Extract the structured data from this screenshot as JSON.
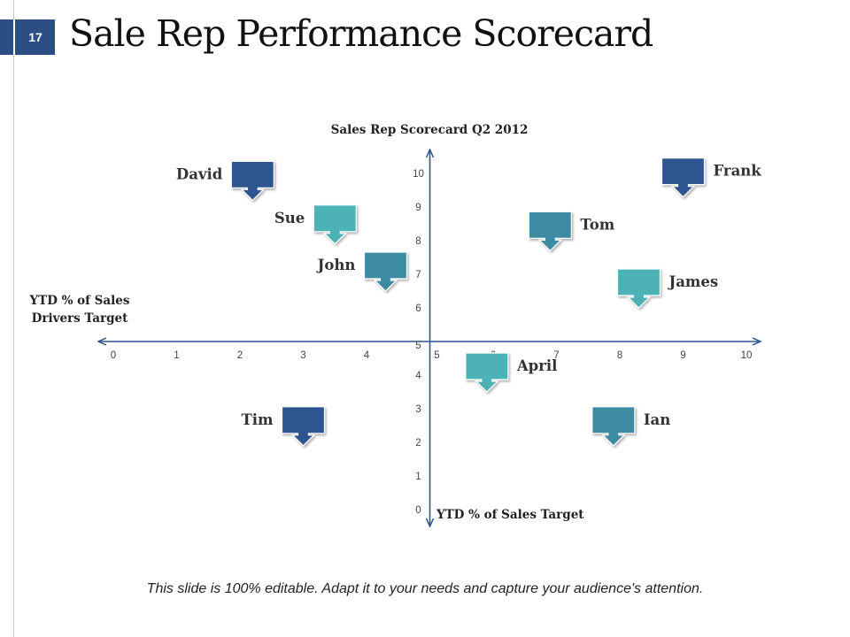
{
  "slide": {
    "number": "17",
    "title": "Sale Rep Performance Scorecard",
    "footer": "This slide is 100% editable. Adapt it to your needs and capture your audience's attention."
  },
  "chart_data": {
    "type": "scatter",
    "title": "Sales Rep Scorecard Q2 2012",
    "xlabel": "YTD % of Sales Drivers Target",
    "ylabel": "YTD % of Sales Target",
    "xlim": [
      0,
      10
    ],
    "ylim": [
      0,
      10
    ],
    "xticks": [
      0,
      1,
      2,
      3,
      4,
      5,
      6,
      7,
      8,
      9,
      10
    ],
    "yticks": [
      0,
      1,
      2,
      3,
      4,
      5,
      6,
      7,
      8,
      9,
      10
    ],
    "colors": {
      "dark": "#2f5590",
      "teal": "#4eb2b6",
      "mid": "#3e8aa3",
      "axis": "#2f5590"
    },
    "points": [
      {
        "name": "David",
        "x": 2.2,
        "y": 9.2,
        "color": "dark",
        "label": "left"
      },
      {
        "name": "Sue",
        "x": 3.5,
        "y": 7.9,
        "color": "teal",
        "label": "left"
      },
      {
        "name": "John",
        "x": 4.3,
        "y": 6.5,
        "color": "mid",
        "label": "left"
      },
      {
        "name": "Tim",
        "x": 3.0,
        "y": 1.9,
        "color": "dark",
        "label": "left"
      },
      {
        "name": "Frank",
        "x": 9.0,
        "y": 9.3,
        "color": "dark",
        "label": "right"
      },
      {
        "name": "Tom",
        "x": 6.9,
        "y": 7.7,
        "color": "mid",
        "label": "right"
      },
      {
        "name": "James",
        "x": 8.3,
        "y": 6.0,
        "color": "teal",
        "label": "right"
      },
      {
        "name": "April",
        "x": 5.9,
        "y": 3.5,
        "color": "teal",
        "label": "right"
      },
      {
        "name": "Ian",
        "x": 7.9,
        "y": 1.9,
        "color": "mid",
        "label": "right"
      }
    ]
  }
}
